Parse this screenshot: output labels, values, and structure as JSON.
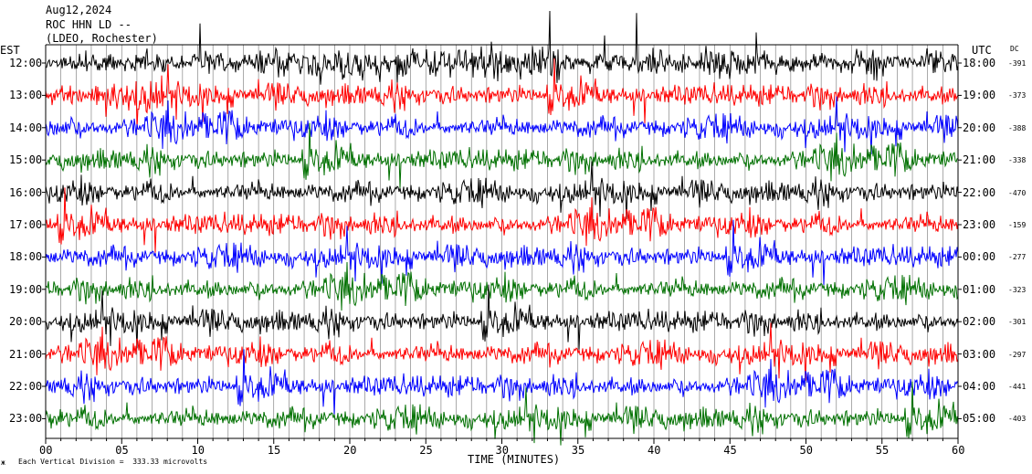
{
  "header": {
    "date": "Aug12,2024",
    "station": "ROC HHN LD --",
    "network": "(LDEO, Rochester)"
  },
  "left_axis_title": "EST",
  "right_axis_title": "UTC",
  "dc_title": "DC",
  "footer": {
    "scale_note": "Each Vertical Division =  333.33 microvolts"
  },
  "chart_data": {
    "type": "line",
    "title": "",
    "xlabel": "TIME (MINUTES)",
    "ylabel": "",
    "xlim": [
      0,
      60
    ],
    "x_ticks": [
      "00",
      "05",
      "10",
      "15",
      "20",
      "25",
      "30",
      "35",
      "40",
      "45",
      "50",
      "55",
      "60"
    ],
    "grid": true,
    "trace_colors": [
      "#000000",
      "#ff0000",
      "#0000ff",
      "#007000"
    ],
    "rows": [
      {
        "est": "12:00",
        "utc": "18:00",
        "dc": "-391",
        "color": "#000000"
      },
      {
        "est": "13:00",
        "utc": "19:00",
        "dc": "-373",
        "color": "#ff0000"
      },
      {
        "est": "14:00",
        "utc": "20:00",
        "dc": "-388",
        "color": "#0000ff"
      },
      {
        "est": "15:00",
        "utc": "21:00",
        "dc": "-338",
        "color": "#007000"
      },
      {
        "est": "16:00",
        "utc": "22:00",
        "dc": "-470",
        "color": "#000000"
      },
      {
        "est": "17:00",
        "utc": "23:00",
        "dc": "-159",
        "color": "#ff0000"
      },
      {
        "est": "18:00",
        "utc": "00:00",
        "dc": "-277",
        "color": "#0000ff"
      },
      {
        "est": "19:00",
        "utc": "01:00",
        "dc": "-323",
        "color": "#007000"
      },
      {
        "est": "20:00",
        "utc": "02:00",
        "dc": "-301",
        "color": "#000000"
      },
      {
        "est": "21:00",
        "utc": "03:00",
        "dc": "-297",
        "color": "#ff0000"
      },
      {
        "est": "22:00",
        "utc": "04:00",
        "dc": "-441",
        "color": "#0000ff"
      },
      {
        "est": "23:00",
        "utc": "05:00",
        "dc": "-403",
        "color": "#007000"
      }
    ]
  }
}
